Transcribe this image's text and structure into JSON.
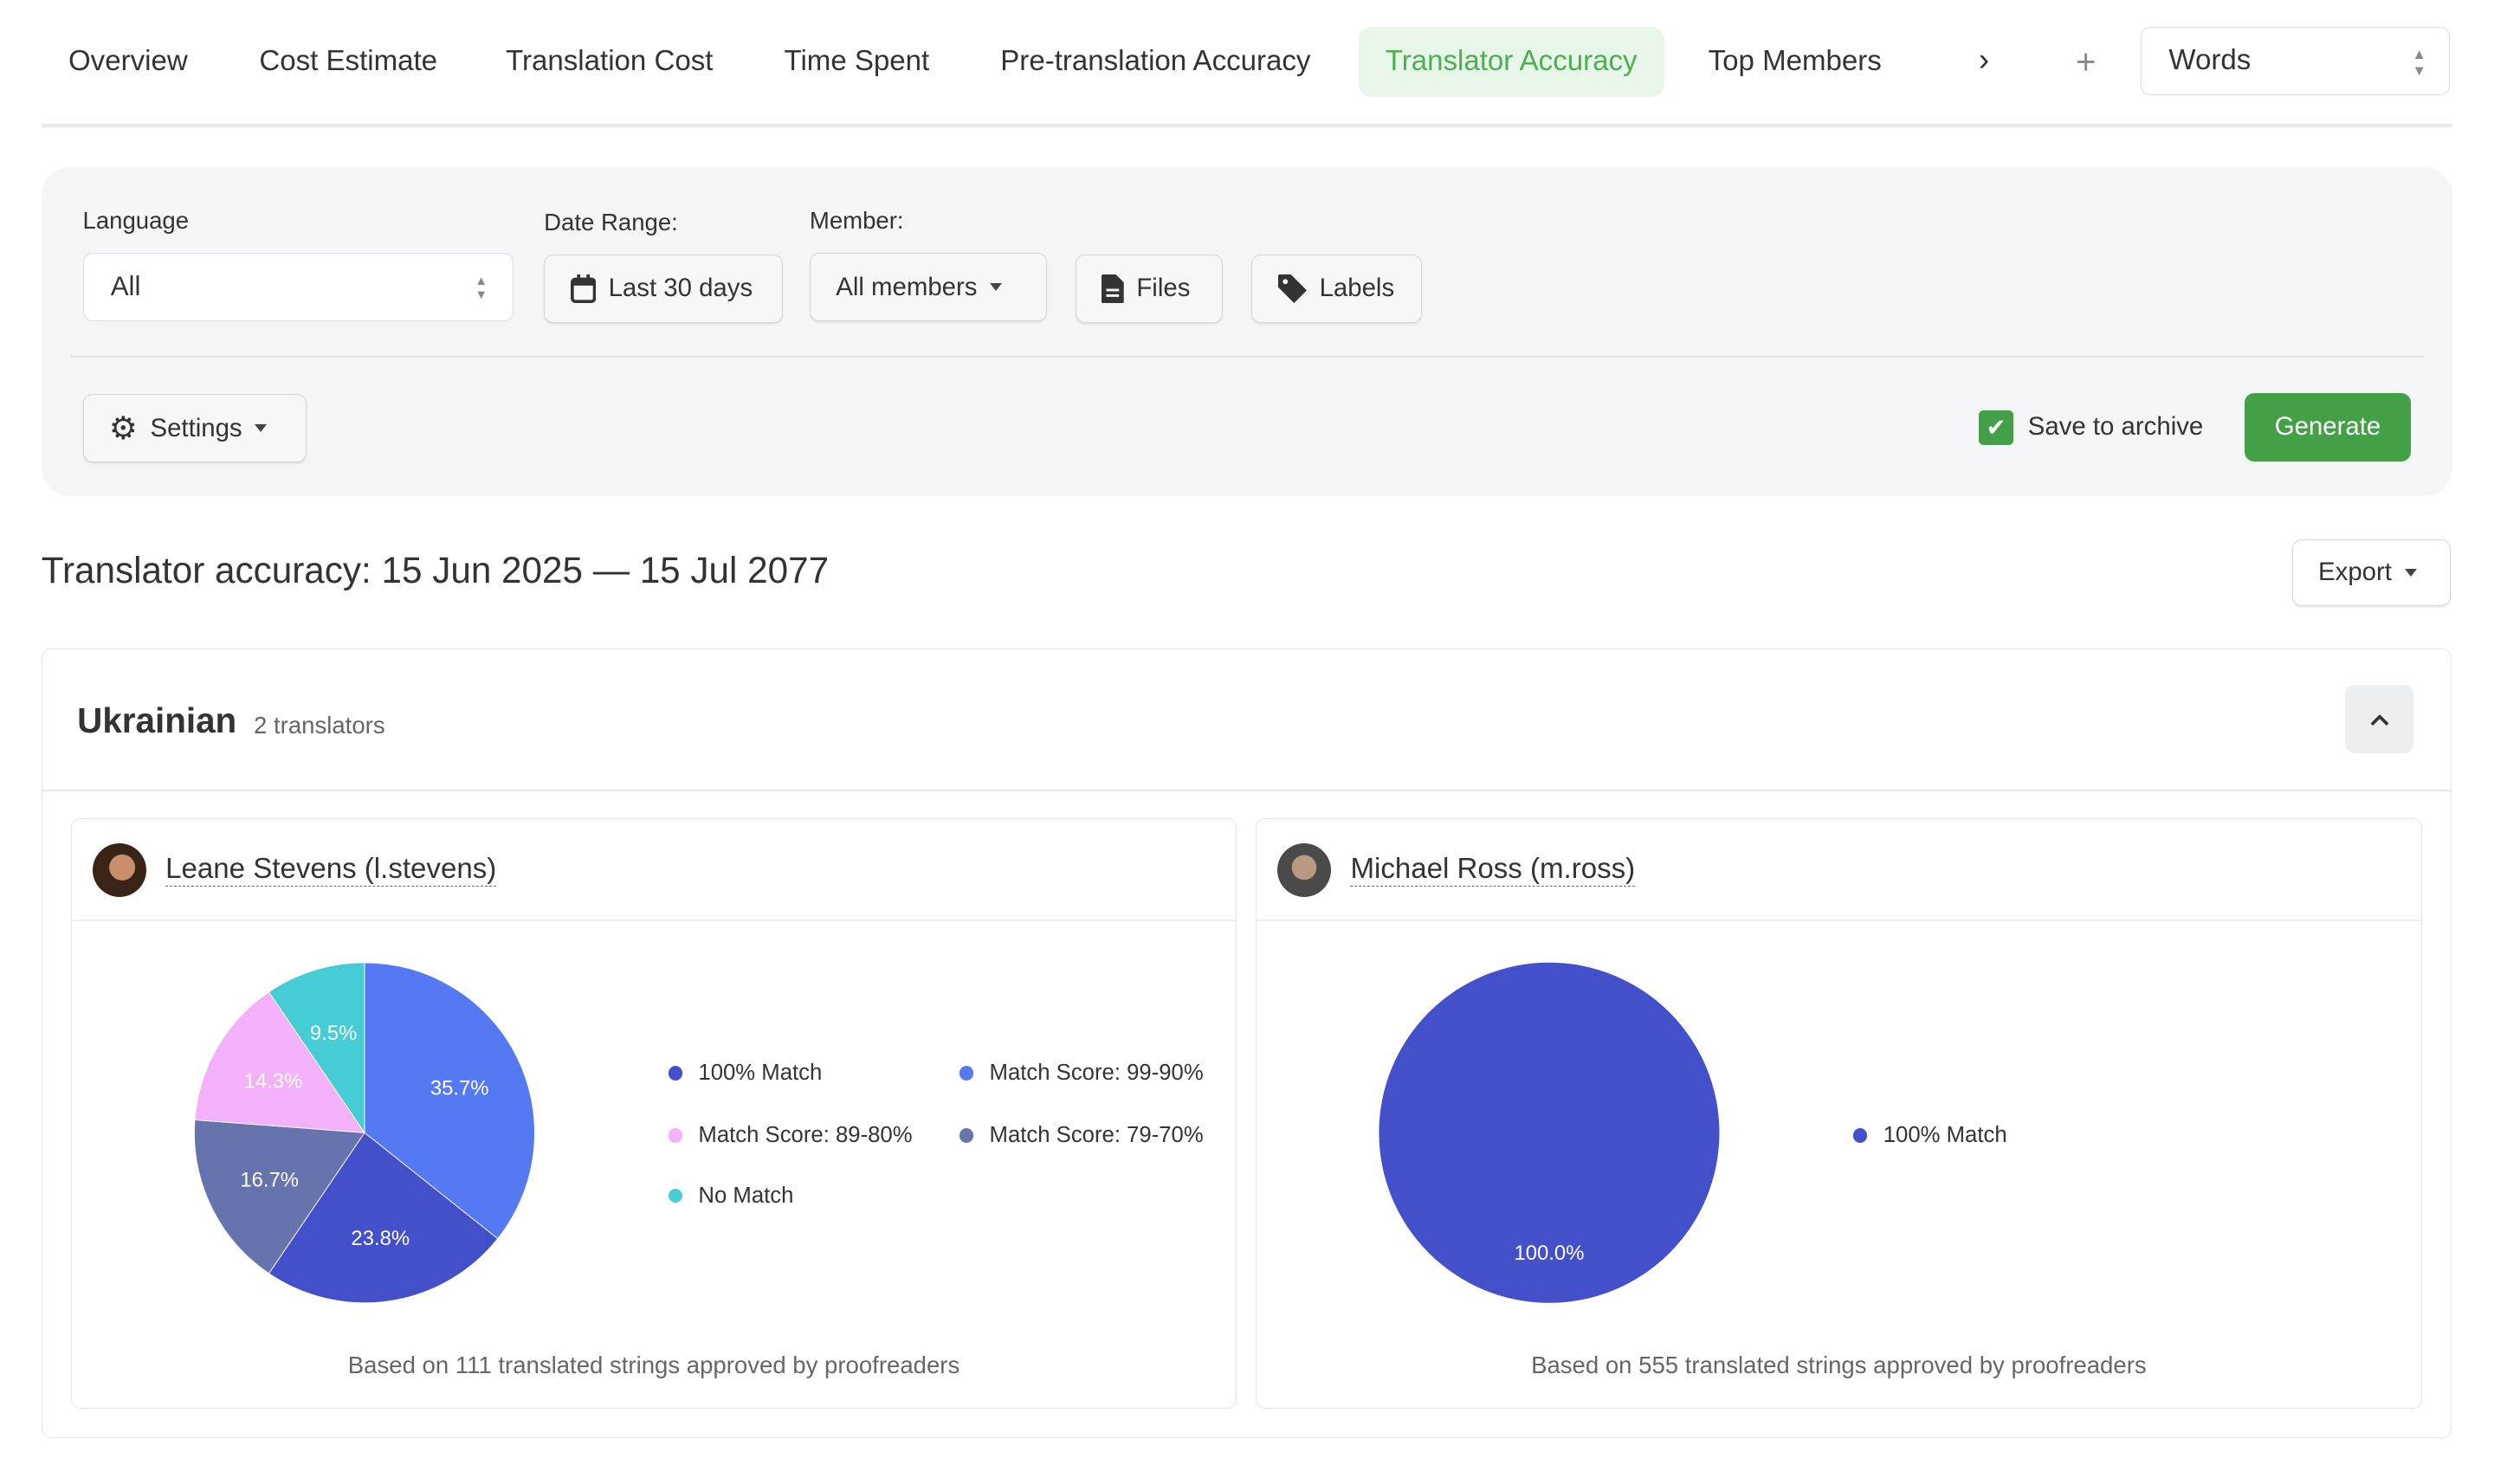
{
  "tabs": [
    {
      "label": "Overview"
    },
    {
      "label": "Cost Estimate"
    },
    {
      "label": "Translation Cost"
    },
    {
      "label": "Time Spent"
    },
    {
      "label": "Pre-translation Accuracy"
    },
    {
      "label": "Translator Accuracy",
      "active": true
    },
    {
      "label": "Top Members"
    }
  ],
  "unit_select": {
    "value": "Words"
  },
  "filters": {
    "language_label": "Language",
    "language_value": "All",
    "date_label": "Date Range:",
    "date_value": "Last 30 days",
    "member_label": "Member:",
    "member_value": "All members",
    "files": "Files",
    "labels": "Labels",
    "settings": "Settings",
    "save_archive": "Save to archive",
    "save_archive_checked": true,
    "generate": "Generate"
  },
  "report": {
    "title": "Translator accuracy: 15 Jun 2025 — 15 Jul 2077",
    "export": "Export"
  },
  "group": {
    "language": "Ukrainian",
    "count": "2 translators"
  },
  "colors": {
    "accent": "#43a047",
    "m100": "#4350c9",
    "m99_90": "#5579f2",
    "m89_80": "#f2b1f8",
    "m79_70": "#6773ad",
    "nomatch": "#45ccd4"
  },
  "chart_data": [
    {
      "type": "pie",
      "title": "Leane Stevens (l.stevens)",
      "slices": [
        {
          "name": "Match Score: 99-90%",
          "value": 35.7,
          "label": "35.7%",
          "color": "#5579f2"
        },
        {
          "name": "100% Match",
          "value": 23.8,
          "label": "23.8%",
          "color": "#4350c9"
        },
        {
          "name": "Match Score: 79-70%",
          "value": 16.7,
          "label": "16.7%",
          "color": "#6773ad"
        },
        {
          "name": "Match Score: 89-80%",
          "value": 14.3,
          "label": "14.3%",
          "color": "#f2b1f8"
        },
        {
          "name": "No Match",
          "value": 9.5,
          "label": "9.5%",
          "color": "#45ccd4"
        }
      ],
      "legend": [
        "100% Match",
        "Match Score: 99-90%",
        "Match Score: 89-80%",
        "Match Score: 79-70%",
        "No Match"
      ],
      "footer": "Based on 111 translated strings approved by proofreaders"
    },
    {
      "type": "pie",
      "title": "Michael Ross (m.ross)",
      "slices": [
        {
          "name": "100% Match",
          "value": 100,
          "label": "100.0%",
          "color": "#4350c9"
        }
      ],
      "legend": [
        "100% Match"
      ],
      "footer": "Based on 555 translated strings approved by proofreaders"
    }
  ]
}
